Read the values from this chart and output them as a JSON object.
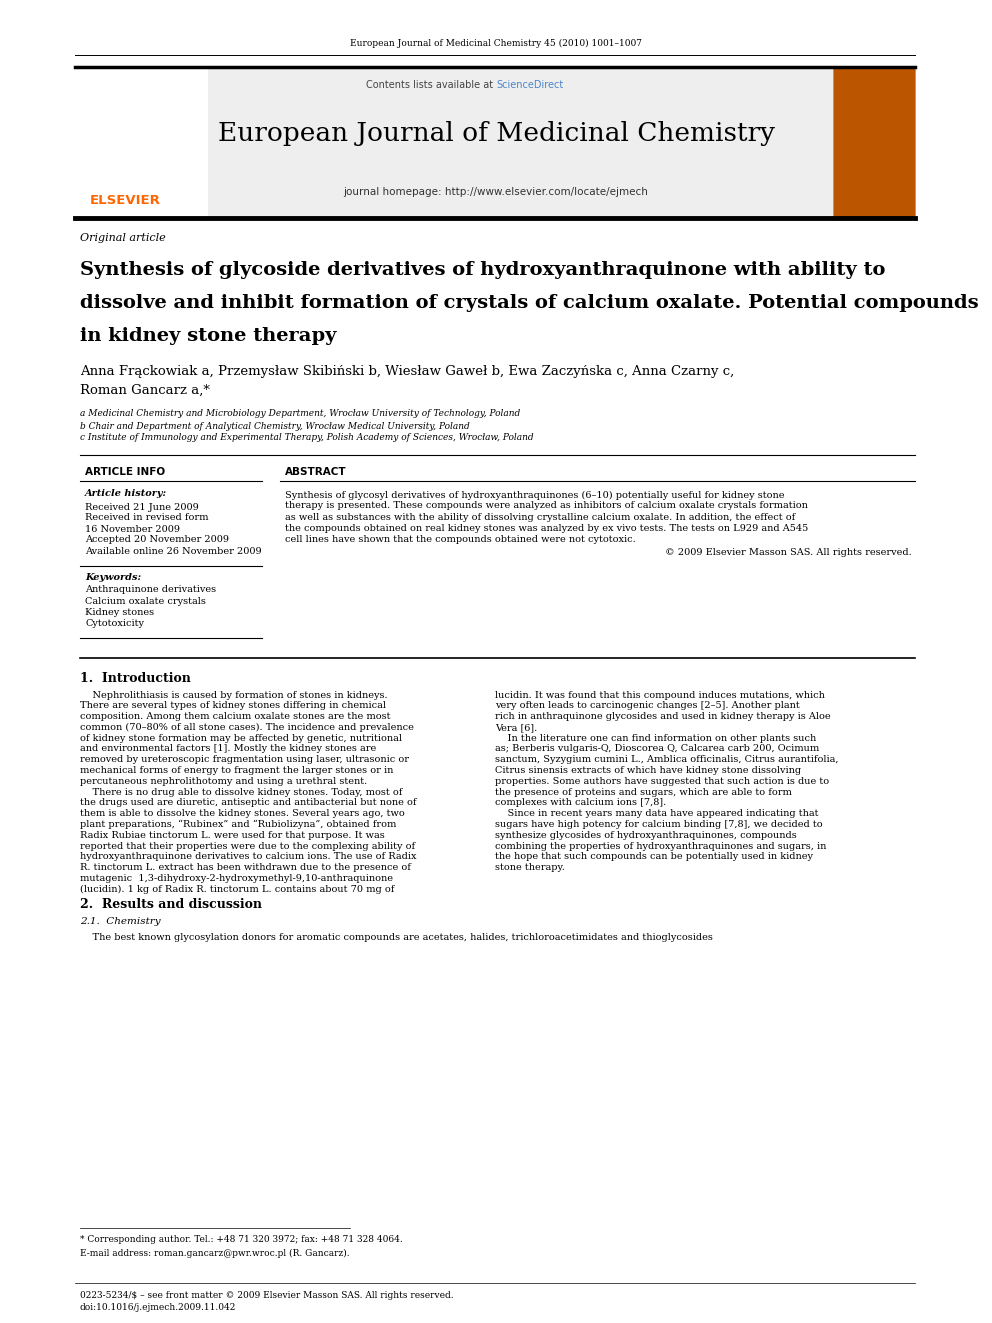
{
  "page_width": 9.92,
  "page_height": 13.23,
  "bg_color": "#ffffff",
  "top_journal_ref": "European Journal of Medicinal Chemistry 45 (2010) 1001–1007",
  "header_contents_text": "Contents lists available at ",
  "header_sciencedirect": "ScienceDirect",
  "header_sciencedirect_color": "#4a86c8",
  "journal_title": "European Journal of Medicinal Chemistry",
  "journal_homepage": "journal homepage: http://www.elsevier.com/locate/ejmech",
  "article_type": "Original article",
  "paper_title_line1": "Synthesis of glycoside derivatives of hydroxyanthraquinone with ability to",
  "paper_title_line2": "dissolve and inhibit formation of crystals of calcium oxalate. Potential compounds",
  "paper_title_line3": "in kidney stone therapy",
  "authors_line1": "Anna Frąckowiak a, Przemysław Skibiński b, Wiesław Gaweł b, Ewa Zaczyńska c, Anna Czarny c,",
  "authors_line2": "Roman Gancarz a,*",
  "affil_a": "a Medicinal Chemistry and Microbiology Department, Wrocław University of Technology, Poland",
  "affil_b": "b Chair and Department of Analytical Chemistry, Wrocław Medical University, Poland",
  "affil_c": "c Institute of Immunology and Experimental Therapy, Polish Academy of Sciences, Wrocław, Poland",
  "article_info_header": "ARTICLE INFO",
  "abstract_header": "ABSTRACT",
  "article_history_label": "Article history:",
  "received": "Received 21 June 2009",
  "received_revised": "Received in revised form",
  "received_revised_date": "16 November 2009",
  "accepted": "Accepted 20 November 2009",
  "available": "Available online 26 November 2009",
  "keywords_label": "Keywords:",
  "keyword1": "Anthraquinone derivatives",
  "keyword2": "Calcium oxalate crystals",
  "keyword3": "Kidney stones",
  "keyword4": "Cytotoxicity",
  "abstract_lines": [
    "Synthesis of glycosyl derivatives of hydroxyanthraquinones (6–10) potentially useful for kidney stone",
    "therapy is presented. These compounds were analyzed as inhibitors of calcium oxalate crystals formation",
    "as well as substances with the ability of dissolving crystalline calcium oxalate. In addition, the effect of",
    "the compounds obtained on real kidney stones was analyzed by ex vivo tests. The tests on L929 and A545",
    "cell lines have shown that the compounds obtained were not cytotoxic."
  ],
  "abstract_copyright": "© 2009 Elsevier Masson SAS. All rights reserved.",
  "intro_header": "1.  Introduction",
  "intro_left_lines": [
    "    Nephrolithiasis is caused by formation of stones in kidneys.",
    "There are several types of kidney stones differing in chemical",
    "composition. Among them calcium oxalate stones are the most",
    "common (70–80% of all stone cases). The incidence and prevalence",
    "of kidney stone formation may be affected by genetic, nutritional",
    "and environmental factors [1]. Mostly the kidney stones are",
    "removed by ureteroscopic fragmentation using laser, ultrasonic or",
    "mechanical forms of energy to fragment the larger stones or in",
    "percutaneous nephrolithotomy and using a urethral stent.",
    "    There is no drug able to dissolve kidney stones. Today, most of",
    "the drugs used are diuretic, antiseptic and antibacterial but none of",
    "them is able to dissolve the kidney stones. Several years ago, two",
    "plant preparations, “Rubinex” and “Rubiolizyna”, obtained from",
    "Radix Rubiae tinctorum L. were used for that purpose. It was",
    "reported that their properties were due to the complexing ability of",
    "hydroxyanthraquinone derivatives to calcium ions. The use of Radix",
    "R. tinctorum L. extract has been withdrawn due to the presence of",
    "mutagenic  1,3-dihydroxy-2-hydroxymethyl-9,10-anthraquinone",
    "(lucidin). 1 kg of Radix R. tinctorum L. contains about 70 mg of"
  ],
  "intro_right_lines": [
    "lucidin. It was found that this compound induces mutations, which",
    "very often leads to carcinogenic changes [2–5]. Another plant",
    "rich in anthraquinone glycosides and used in kidney therapy is Aloe",
    "Vera [6].",
    "    In the literature one can find information on other plants such",
    "as; Berberis vulgaris-Q, Dioscorea Q, Calcarea carb 200, Ocimum",
    "sanctum, Syzygium cumini L., Amblica officinalis, Citrus aurantifolia,",
    "Citrus sinensis extracts of which have kidney stone dissolving",
    "properties. Some authors have suggested that such action is due to",
    "the presence of proteins and sugars, which are able to form",
    "complexes with calcium ions [7,8].",
    "    Since in recent years many data have appeared indicating that",
    "sugars have high potency for calcium binding [7,8], we decided to",
    "synthesize glycosides of hydroxyanthraquinones, compounds",
    "combining the properties of hydroxyanthraquinones and sugars, in",
    "the hope that such compounds can be potentially used in kidney",
    "stone therapy."
  ],
  "results_header": "2.  Results and discussion",
  "results_sub": "2.1.  Chemistry",
  "results_text": "    The best known glycosylation donors for aromatic compounds are acetates, halides, trichloroacetimidates and thioglycosides",
  "footnote_corresponding": "* Corresponding author. Tel.: +48 71 320 3972; fax: +48 71 328 4064.",
  "footnote_email": "E-mail address: roman.gancarz@pwr.wroc.pl (R. Gancarz).",
  "footer_issn": "0223-5234/$ – see front matter © 2009 Elsevier Masson SAS. All rights reserved.",
  "footer_doi": "doi:10.1016/j.ejmech.2009.11.042",
  "elsevier_color": "#FF6600"
}
